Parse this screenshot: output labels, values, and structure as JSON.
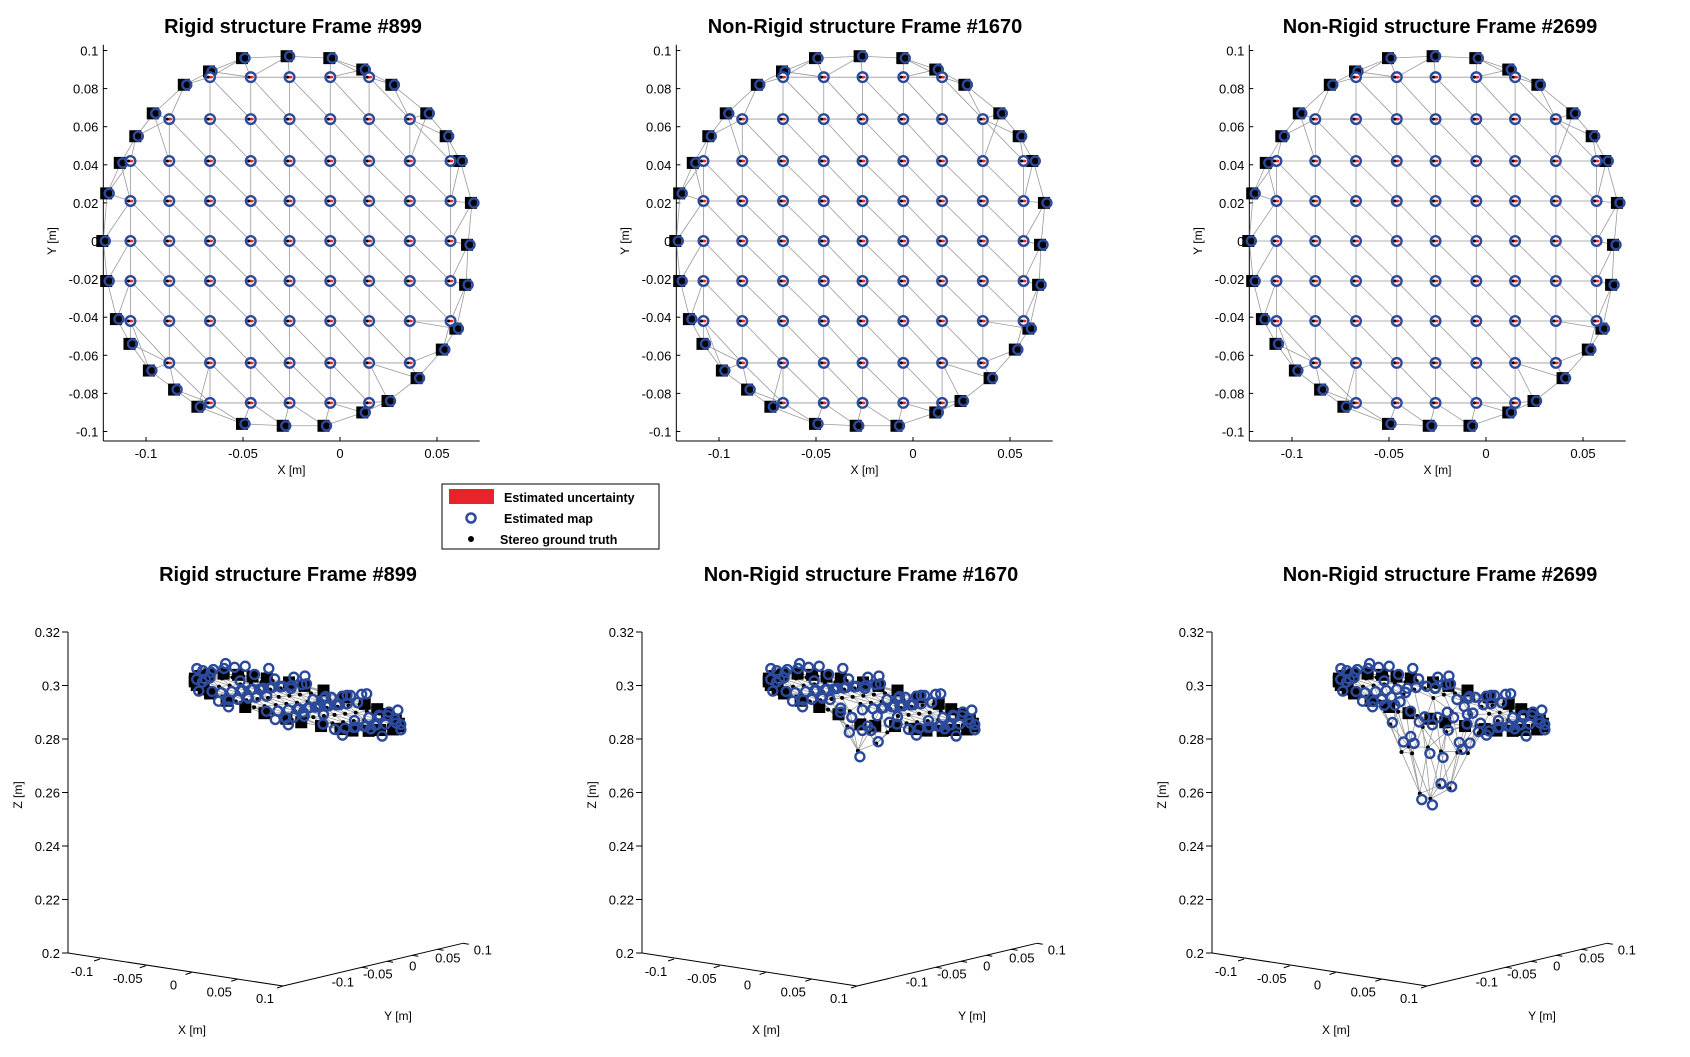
{
  "colors": {
    "map": "#2b4a9c",
    "uncertainty": "#e8232a",
    "truth": "#000000",
    "mesh": "#9a9a9a",
    "boundary": "#000000"
  },
  "legend": {
    "items": [
      {
        "label": "Estimated uncertainty",
        "marker": "red-rectangle"
      },
      {
        "label": "Estimated map",
        "marker": "blue-circle"
      },
      {
        "label": "Stereo ground truth",
        "marker": "black-dot"
      }
    ]
  },
  "chart_data": [
    {
      "type": "scatter",
      "view": "2d",
      "title": "Rigid structure Frame #899",
      "xlabel": "X [m]",
      "ylabel": "Y [m]",
      "xlim": [
        -0.122,
        0.072
      ],
      "ylim": [
        -0.105,
        0.103
      ],
      "xticks": [
        "-0.1",
        "-0.05",
        "0",
        "0.05"
      ],
      "xtick_values": [
        -0.1,
        -0.05,
        0,
        0.05
      ],
      "yticks": [
        "-0.1",
        "-0.08",
        "-0.06",
        "-0.04",
        "-0.02",
        "0",
        "0.02",
        "0.04",
        "0.06",
        "0.08",
        "0.1"
      ],
      "ytick_values": [
        -0.1,
        -0.08,
        -0.06,
        -0.04,
        -0.02,
        0,
        0.02,
        0.04,
        0.06,
        0.08,
        0.1
      ]
    },
    {
      "type": "scatter",
      "view": "2d",
      "title": "Non-Rigid structure Frame #1670",
      "xlabel": "X [m]",
      "ylabel": "Y [m]",
      "xlim": [
        -0.122,
        0.072
      ],
      "ylim": [
        -0.105,
        0.103
      ],
      "xticks": [
        "-0.1",
        "-0.05",
        "0",
        "0.05"
      ],
      "xtick_values": [
        -0.1,
        -0.05,
        0,
        0.05
      ],
      "yticks": [
        "-0.1",
        "-0.08",
        "-0.06",
        "-0.04",
        "-0.02",
        "0",
        "0.02",
        "0.04",
        "0.06",
        "0.08",
        "0.1"
      ],
      "ytick_values": [
        -0.1,
        -0.08,
        -0.06,
        -0.04,
        -0.02,
        0,
        0.02,
        0.04,
        0.06,
        0.08,
        0.1
      ]
    },
    {
      "type": "scatter",
      "view": "2d",
      "title": "Non-Rigid structure Frame #2699",
      "xlabel": "X [m]",
      "ylabel": "Y [m]",
      "xlim": [
        -0.122,
        0.072
      ],
      "ylim": [
        -0.105,
        0.103
      ],
      "xticks": [
        "-0.1",
        "-0.05",
        "0",
        "0.05"
      ],
      "xtick_values": [
        -0.1,
        -0.05,
        0,
        0.05
      ],
      "yticks": [
        "-0.1",
        "-0.08",
        "-0.06",
        "-0.04",
        "-0.02",
        "0",
        "0.02",
        "0.04",
        "0.06",
        "0.08",
        "0.1"
      ],
      "ytick_values": [
        -0.1,
        -0.08,
        -0.06,
        -0.04,
        -0.02,
        0,
        0.02,
        0.04,
        0.06,
        0.08,
        0.1
      ]
    },
    {
      "type": "scatter",
      "view": "3d",
      "title": "Rigid structure Frame #899",
      "xlabel": "X [m]",
      "ylabel": "Y [m]",
      "zlabel": "Z [m]",
      "zlim": [
        0.2,
        0.32
      ],
      "xticks": [
        "-0.1",
        "-0.05",
        "0",
        "0.05",
        "0.1"
      ],
      "xtick_values": [
        -0.1,
        -0.05,
        0,
        0.05,
        0.1
      ],
      "yticks": [
        "-0.1",
        "-0.05",
        "0",
        "0.05",
        "0.1"
      ],
      "ytick_values": [
        -0.1,
        -0.05,
        0,
        0.05,
        0.1
      ],
      "zticks": [
        "0.2",
        "0.22",
        "0.24",
        "0.26",
        "0.28",
        "0.3",
        "0.32"
      ],
      "ztick_values": [
        0.2,
        0.22,
        0.24,
        0.26,
        0.28,
        0.3,
        0.32
      ],
      "surface": {
        "z0": 0.2865,
        "slope_x": -0.06,
        "slope_y": -0.025,
        "dip_depth": 0,
        "dip_center": [
          0,
          0
        ],
        "dip_width": 0.04
      }
    },
    {
      "type": "scatter",
      "view": "3d",
      "title": "Non-Rigid structure Frame #1670",
      "xlabel": "X [m]",
      "ylabel": "Y [m]",
      "zlabel": "Z [m]",
      "zlim": [
        0.2,
        0.32
      ],
      "xticks": [
        "-0.1",
        "-0.05",
        "0",
        "0.05",
        "0.1"
      ],
      "xtick_values": [
        -0.1,
        -0.05,
        0,
        0.05,
        0.1
      ],
      "yticks": [
        "-0.1",
        "-0.05",
        "0",
        "0.05",
        "0.1"
      ],
      "ytick_values": [
        -0.1,
        -0.05,
        0,
        0.05,
        0.1
      ],
      "zticks": [
        "0.2",
        "0.22",
        "0.24",
        "0.26",
        "0.28",
        "0.3",
        "0.32"
      ],
      "ztick_values": [
        0.2,
        0.22,
        0.24,
        0.26,
        0.28,
        0.3,
        0.32
      ],
      "surface": {
        "z0": 0.2865,
        "slope_x": -0.06,
        "slope_y": -0.025,
        "dip_depth": 0.018,
        "dip_center": [
          0.0,
          -0.06
        ],
        "dip_width": 0.04
      }
    },
    {
      "type": "scatter",
      "view": "3d",
      "title": "Non-Rigid structure Frame #2699",
      "xlabel": "X [m]",
      "ylabel": "Y [m]",
      "zlabel": "Z [m]",
      "zlim": [
        0.2,
        0.32
      ],
      "xticks": [
        "-0.1",
        "-0.05",
        "0",
        "0.05",
        "0.1"
      ],
      "xtick_values": [
        -0.1,
        -0.05,
        0,
        0.05,
        0.1
      ],
      "yticks": [
        "-0.1",
        "-0.05",
        "0",
        "0.05",
        "0.1"
      ],
      "ytick_values": [
        -0.1,
        -0.05,
        0,
        0.05,
        0.1
      ],
      "zticks": [
        "0.2",
        "0.22",
        "0.24",
        "0.26",
        "0.28",
        "0.3",
        "0.32"
      ],
      "ztick_values": [
        0.2,
        0.22,
        0.24,
        0.26,
        0.28,
        0.3,
        0.32
      ],
      "surface": {
        "z0": 0.2865,
        "slope_x": -0.06,
        "slope_y": -0.025,
        "dip_depth": 0.046,
        "dip_center": [
          -0.02,
          -0.03
        ],
        "dip_width": 0.06
      }
    }
  ],
  "structure": {
    "grid_x": [
      -0.108,
      -0.088,
      -0.067,
      -0.046,
      -0.026,
      -0.005,
      0.015,
      0.036,
      0.057
    ],
    "grid_y": [
      0.086,
      0.064,
      0.042,
      0.021,
      0,
      -0.021,
      -0.042,
      -0.064,
      -0.085
    ],
    "grid_center": [
      -0.027,
      0
    ],
    "grid_radius": 0.1,
    "boundary_points": [
      [
        -0.05,
        0.096
      ],
      [
        -0.027,
        0.097
      ],
      [
        -0.005,
        0.096
      ],
      [
        0.012,
        0.09
      ],
      [
        0.027,
        0.082
      ],
      [
        0.045,
        0.067
      ],
      [
        0.055,
        0.055
      ],
      [
        0.062,
        0.042
      ],
      [
        0.068,
        0.02
      ],
      [
        0.066,
        -0.002
      ],
      [
        0.065,
        -0.023
      ],
      [
        0.06,
        -0.046
      ],
      [
        0.053,
        -0.057
      ],
      [
        0.04,
        -0.072
      ],
      [
        0.025,
        -0.084
      ],
      [
        0.012,
        -0.09
      ],
      [
        -0.008,
        -0.097
      ],
      [
        -0.029,
        -0.097
      ],
      [
        -0.05,
        -0.096
      ],
      [
        -0.073,
        -0.087
      ],
      [
        -0.085,
        -0.078
      ],
      [
        -0.098,
        -0.068
      ],
      [
        -0.108,
        -0.054
      ],
      [
        -0.115,
        -0.041
      ],
      [
        -0.12,
        -0.021
      ],
      [
        -0.122,
        0
      ],
      [
        -0.12,
        0.025
      ],
      [
        -0.113,
        0.041
      ],
      [
        -0.105,
        0.055
      ],
      [
        -0.096,
        0.067
      ],
      [
        -0.08,
        0.082
      ],
      [
        -0.067,
        0.089
      ]
    ]
  }
}
